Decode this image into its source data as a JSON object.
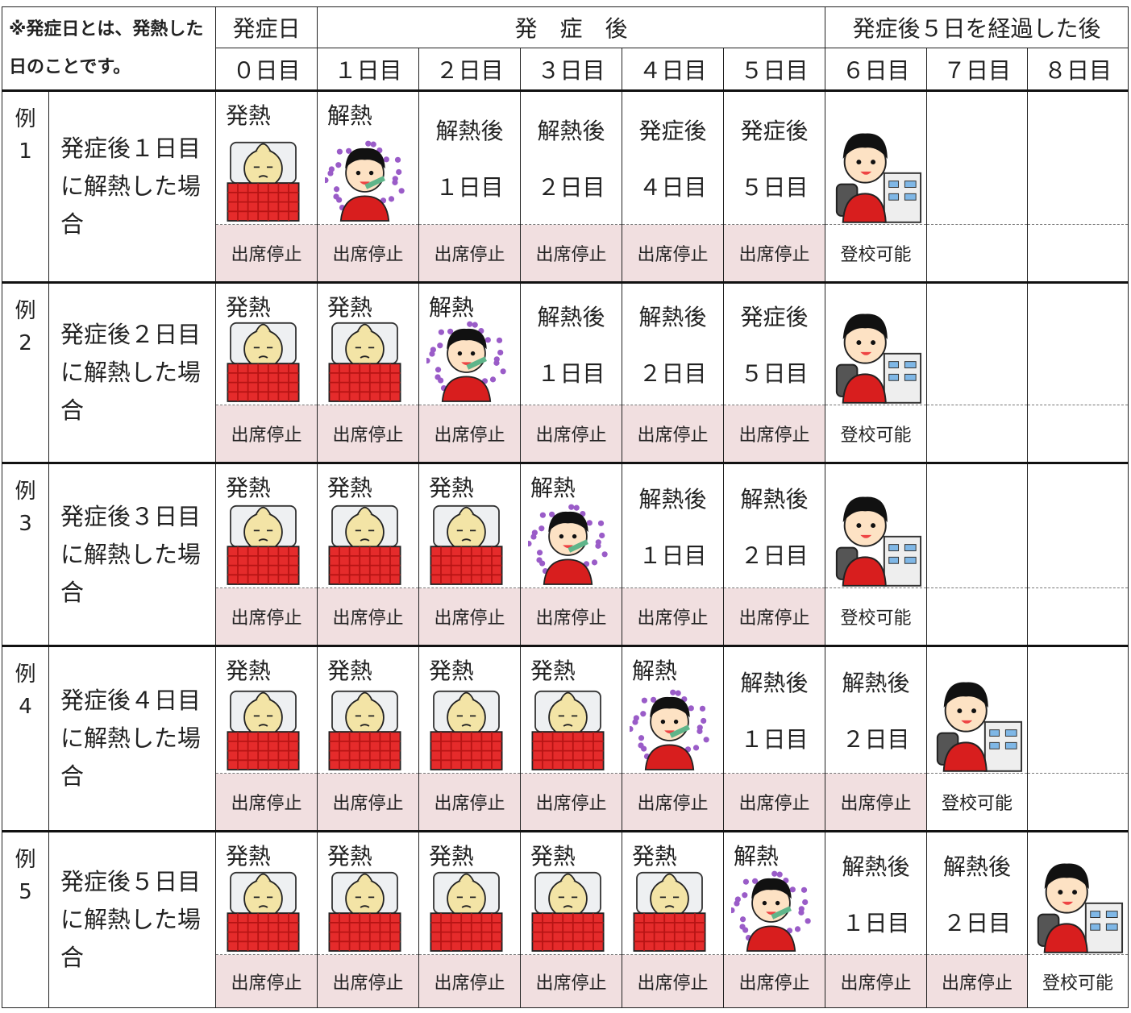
{
  "header": {
    "note": "※発症日とは、発熱した日のことです。",
    "onset": "発症日",
    "after": "発　症　後",
    "passed": "発症後５日を経過した後",
    "days": [
      "０日目",
      "１日目",
      "２日目",
      "３日目",
      "４日目",
      "５日目",
      "６日目",
      "７日目",
      "８日目"
    ]
  },
  "examples": [
    {
      "mark": "例",
      "number": "1",
      "description": "発症後１日目に解熱した場合",
      "cells": [
        {
          "lines": [
            "発熱"
          ],
          "status": "出席停止"
        },
        {
          "lines": [
            "解熱"
          ],
          "status": "出席停止"
        },
        {
          "lines": [
            "解熱後",
            "１日目"
          ],
          "status": "出席停止"
        },
        {
          "lines": [
            "解熱後",
            "２日目"
          ],
          "status": "出席停止"
        },
        {
          "lines": [
            "発症後",
            "４日目"
          ],
          "status": "出席停止"
        },
        {
          "lines": [
            "発症後",
            "５日目"
          ],
          "status": "出席停止"
        },
        {
          "status": "登校可能"
        },
        {},
        {}
      ]
    },
    {
      "mark": "例",
      "number": "2",
      "description": "発症後２日目に解熱した場合",
      "cells": [
        {
          "lines": [
            "発熱"
          ],
          "status": "出席停止"
        },
        {
          "lines": [
            "発熱"
          ],
          "status": "出席停止"
        },
        {
          "lines": [
            "解熱"
          ],
          "status": "出席停止"
        },
        {
          "lines": [
            "解熱後",
            "１日目"
          ],
          "status": "出席停止"
        },
        {
          "lines": [
            "解熱後",
            "２日目"
          ],
          "status": "出席停止"
        },
        {
          "lines": [
            "発症後",
            "５日目"
          ],
          "status": "出席停止"
        },
        {
          "status": "登校可能"
        },
        {},
        {}
      ]
    },
    {
      "mark": "例",
      "number": "3",
      "description": "発症後３日目に解熱した場合",
      "cells": [
        {
          "lines": [
            "発熱"
          ],
          "status": "出席停止"
        },
        {
          "lines": [
            "発熱"
          ],
          "status": "出席停止"
        },
        {
          "lines": [
            "発熱"
          ],
          "status": "出席停止"
        },
        {
          "lines": [
            "解熱"
          ],
          "status": "出席停止"
        },
        {
          "lines": [
            "解熱後",
            "１日目"
          ],
          "status": "出席停止"
        },
        {
          "lines": [
            "解熱後",
            "２日目"
          ],
          "status": "出席停止"
        },
        {
          "status": "登校可能"
        },
        {},
        {}
      ]
    },
    {
      "mark": "例",
      "number": "4",
      "description": "発症後４日目に解熱した場合",
      "cells": [
        {
          "lines": [
            "発熱"
          ],
          "status": "出席停止"
        },
        {
          "lines": [
            "発熱"
          ],
          "status": "出席停止"
        },
        {
          "lines": [
            "発熱"
          ],
          "status": "出席停止"
        },
        {
          "lines": [
            "発熱"
          ],
          "status": "出席停止"
        },
        {
          "lines": [
            "解熱"
          ],
          "status": "出席停止"
        },
        {
          "lines": [
            "解熱後",
            "１日目"
          ],
          "status": "出席停止"
        },
        {
          "lines": [
            "解熱後",
            "２日目"
          ],
          "status": "出席停止"
        },
        {
          "status": "登校可能"
        },
        {}
      ]
    },
    {
      "mark": "例",
      "number": "5",
      "description": "発症後５日目に解熱した場合",
      "cells": [
        {
          "lines": [
            "発熱"
          ],
          "status": "出席停止"
        },
        {
          "lines": [
            "発熱"
          ],
          "status": "出席停止"
        },
        {
          "lines": [
            "発熱"
          ],
          "status": "出席停止"
        },
        {
          "lines": [
            "発熱"
          ],
          "status": "出席停止"
        },
        {
          "lines": [
            "発熱"
          ],
          "status": "出席停止"
        },
        {
          "lines": [
            "解熱"
          ],
          "status": "出席停止"
        },
        {
          "lines": [
            "解熱後",
            "１日目"
          ],
          "status": "出席停止"
        },
        {
          "lines": [
            "解熱後",
            "２日目"
          ],
          "status": "出席停止"
        },
        {
          "status": "登校可能"
        }
      ]
    }
  ]
}
